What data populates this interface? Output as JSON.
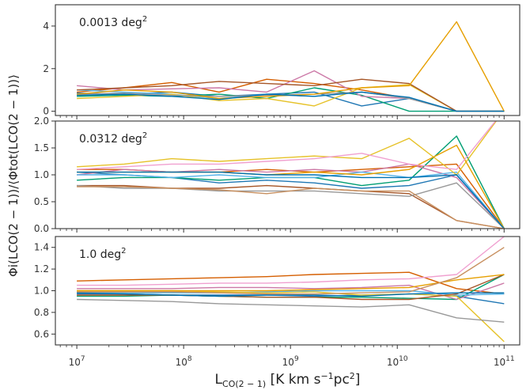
{
  "chart_data": {
    "type": "line",
    "x_scale": "log",
    "xlabel": {
      "main": "L",
      "sub": "CO(2 − 1)",
      "unit_pre": " [K km s",
      "unit_sup1": "−1",
      "unit_mid": "pc",
      "unit_sup2": "2",
      "unit_post": "]"
    },
    "ylabel": "Φi(LCO(2 − 1))/⟨Φtot(LCO(2 − 1))⟩",
    "x_ticks": [
      {
        "value": 10000000.0,
        "base": "10",
        "exp": "7"
      },
      {
        "value": 100000000.0,
        "base": "10",
        "exp": "8"
      },
      {
        "value": 1000000000.0,
        "base": "10",
        "exp": "9"
      },
      {
        "value": 10000000000.0,
        "base": "10",
        "exp": "10"
      },
      {
        "value": 100000000000.0,
        "base": "10",
        "exp": "11"
      }
    ],
    "xlim": [
      6300000.0,
      140000000000.0
    ],
    "x": [
      10000000.0,
      27800000.0,
      77400000.0,
      215000000.0,
      599000000.0,
      1670000000.0,
      4640000000.0,
      12900000000.0,
      35900000000.0,
      100000000000.0
    ],
    "palette": [
      "#1f77b4",
      "#d55e00",
      "#009e73",
      "#cc79a7",
      "#56b4e9",
      "#e6c229",
      "#a65628",
      "#999999",
      "#e69f00",
      "#0072b2",
      "#f0a0d0",
      "#c89060"
    ],
    "panels": [
      {
        "label_main": "0.0013 deg",
        "label_sup": "2",
        "ylim": [
          -0.2,
          5.0
        ],
        "y_ticks": [
          {
            "value": 0,
            "label": "0"
          },
          {
            "value": 2,
            "label": "2"
          },
          {
            "value": 4,
            "label": "4"
          }
        ],
        "series": [
          {
            "color": "#1f77b4",
            "values": [
              0.85,
              0.8,
              0.9,
              0.7,
              0.8,
              0.9,
              0.25,
              0.6,
              0.0,
              0.0
            ]
          },
          {
            "color": "#d55e00",
            "values": [
              0.9,
              1.1,
              1.35,
              0.9,
              1.5,
              1.3,
              1.0,
              0.6,
              0.0,
              0.0
            ]
          },
          {
            "color": "#009e73",
            "values": [
              0.7,
              0.75,
              0.7,
              0.8,
              0.6,
              1.1,
              0.75,
              0.0,
              0.0,
              0.0
            ]
          },
          {
            "color": "#cc79a7",
            "values": [
              1.2,
              1.0,
              1.05,
              1.1,
              0.9,
              1.9,
              0.7,
              0.6,
              0.0,
              0.0
            ]
          },
          {
            "color": "#56b4e9",
            "values": [
              1.0,
              0.9,
              0.8,
              0.6,
              0.8,
              0.7,
              0.9,
              0.6,
              0.0,
              0.0
            ]
          },
          {
            "color": "#e6c229",
            "values": [
              0.6,
              0.7,
              0.8,
              0.5,
              0.6,
              0.25,
              1.1,
              1.25,
              0.0,
              0.0
            ]
          },
          {
            "color": "#a65628",
            "values": [
              1.0,
              1.1,
              1.2,
              1.4,
              1.3,
              1.2,
              1.5,
              1.3,
              0.0,
              0.0
            ]
          },
          {
            "color": "#999999",
            "values": [
              0.8,
              0.85,
              0.75,
              0.7,
              0.75,
              0.8,
              0.9,
              0.6,
              0.0,
              0.0
            ]
          },
          {
            "color": "#e69f00",
            "values": [
              0.8,
              1.0,
              0.9,
              0.6,
              0.7,
              0.8,
              1.1,
              1.2,
              4.2,
              0.0
            ]
          },
          {
            "color": "#0072b2",
            "values": [
              0.75,
              0.8,
              0.7,
              0.55,
              0.8,
              0.7,
              0.9,
              0.65,
              0.0,
              0.0
            ]
          }
        ]
      },
      {
        "label_main": "0.0312 deg",
        "label_sup": "2",
        "ylim": [
          0.0,
          2.0
        ],
        "y_ticks": [
          {
            "value": 0.0,
            "label": "0.0"
          },
          {
            "value": 0.5,
            "label": "0.5"
          },
          {
            "value": 1.0,
            "label": "1.0"
          },
          {
            "value": 1.5,
            "label": "1.5"
          },
          {
            "value": 2.0,
            "label": "2.0"
          }
        ],
        "series": [
          {
            "color": "#1f77b4",
            "values": [
              1.05,
              1.0,
              0.95,
              0.85,
              0.9,
              0.85,
              0.75,
              0.8,
              1.0,
              0.0
            ]
          },
          {
            "color": "#d55e00",
            "values": [
              1.1,
              1.1,
              1.05,
              1.05,
              1.1,
              1.05,
              1.1,
              1.15,
              1.2,
              0.0
            ]
          },
          {
            "color": "#009e73",
            "values": [
              0.9,
              0.95,
              0.95,
              0.9,
              0.95,
              0.95,
              0.8,
              0.9,
              1.72,
              0.0
            ]
          },
          {
            "color": "#cc79a7",
            "values": [
              1.0,
              1.1,
              1.05,
              1.1,
              1.05,
              1.1,
              1.05,
              1.2,
              0.95,
              0.0
            ]
          },
          {
            "color": "#56b4e9",
            "values": [
              1.0,
              1.0,
              0.95,
              1.0,
              0.95,
              0.95,
              1.05,
              0.95,
              1.05,
              0.0
            ]
          },
          {
            "color": "#e6c229",
            "values": [
              1.15,
              1.2,
              1.3,
              1.25,
              1.3,
              1.35,
              1.3,
              1.68,
              1.0,
              2.2
            ]
          },
          {
            "color": "#a65628",
            "values": [
              0.8,
              0.8,
              0.75,
              0.75,
              0.8,
              0.75,
              0.7,
              0.65,
              0.15,
              0.0
            ]
          },
          {
            "color": "#999999",
            "values": [
              0.8,
              0.75,
              0.75,
              0.7,
              0.7,
              0.7,
              0.65,
              0.6,
              0.85,
              0.0
            ]
          },
          {
            "color": "#e69f00",
            "values": [
              1.05,
              1.05,
              1.05,
              1.05,
              1.0,
              1.05,
              1.0,
              1.1,
              1.55,
              0.0
            ]
          },
          {
            "color": "#0072b2",
            "values": [
              1.05,
              1.05,
              1.05,
              1.05,
              1.0,
              1.0,
              0.95,
              0.95,
              1.0,
              0.0
            ]
          },
          {
            "color": "#f0a0d0",
            "values": [
              1.1,
              1.15,
              1.2,
              1.2,
              1.25,
              1.3,
              1.4,
              1.2,
              1.1,
              2.2
            ]
          },
          {
            "color": "#c89060",
            "values": [
              0.78,
              0.78,
              0.75,
              0.72,
              0.65,
              0.75,
              0.7,
              0.7,
              0.15,
              0.0
            ]
          }
        ]
      },
      {
        "label_main": "1.0 deg",
        "label_sup": "2",
        "ylim": [
          0.5,
          1.5
        ],
        "y_ticks": [
          {
            "value": 0.6,
            "label": "0.6"
          },
          {
            "value": 0.8,
            "label": "0.8"
          },
          {
            "value": 1.0,
            "label": "1.0"
          },
          {
            "value": 1.2,
            "label": "1.2"
          },
          {
            "value": 1.4,
            "label": "1.4"
          }
        ],
        "series": [
          {
            "color": "#1f77b4",
            "values": [
              0.97,
              0.97,
              0.96,
              0.96,
              0.96,
              0.95,
              0.96,
              0.97,
              0.95,
              0.88
            ]
          },
          {
            "color": "#d55e00",
            "values": [
              1.09,
              1.1,
              1.11,
              1.12,
              1.13,
              1.15,
              1.16,
              1.17,
              1.02,
              0.97
            ]
          },
          {
            "color": "#009e73",
            "values": [
              0.95,
              0.95,
              0.96,
              0.95,
              0.94,
              0.94,
              0.94,
              0.93,
              0.92,
              1.15
            ]
          },
          {
            "color": "#cc79a7",
            "values": [
              1.02,
              1.02,
              1.02,
              1.03,
              1.03,
              1.02,
              1.03,
              1.05,
              0.92,
              1.07
            ]
          },
          {
            "color": "#56b4e9",
            "values": [
              0.98,
              0.98,
              0.98,
              0.98,
              0.99,
              1.0,
              1.0,
              1.0,
              0.96,
              0.97
            ]
          },
          {
            "color": "#e6c229",
            "values": [
              1.0,
              1.0,
              1.0,
              0.99,
              0.98,
              0.99,
              0.96,
              0.97,
              0.95,
              0.53
            ]
          },
          {
            "color": "#a65628",
            "values": [
              0.96,
              0.96,
              0.96,
              0.95,
              0.94,
              0.94,
              0.92,
              0.92,
              0.97,
              1.15
            ]
          },
          {
            "color": "#999999",
            "values": [
              0.92,
              0.91,
              0.9,
              0.88,
              0.87,
              0.86,
              0.85,
              0.87,
              0.75,
              0.71
            ]
          },
          {
            "color": "#e69f00",
            "values": [
              1.0,
              1.0,
              1.0,
              1.0,
              1.0,
              1.01,
              1.02,
              1.03,
              1.1,
              1.15
            ]
          },
          {
            "color": "#0072b2",
            "values": [
              0.98,
              0.97,
              0.96,
              0.95,
              0.96,
              0.96,
              0.95,
              0.97,
              0.98,
              0.98
            ]
          },
          {
            "color": "#f0a0d0",
            "values": [
              1.05,
              1.05,
              1.06,
              1.07,
              1.07,
              1.08,
              1.1,
              1.11,
              1.15,
              1.5
            ]
          },
          {
            "color": "#c89060",
            "values": [
              0.99,
              0.99,
              0.99,
              0.98,
              0.97,
              0.97,
              0.98,
              0.99,
              1.12,
              1.4
            ]
          }
        ]
      }
    ]
  }
}
